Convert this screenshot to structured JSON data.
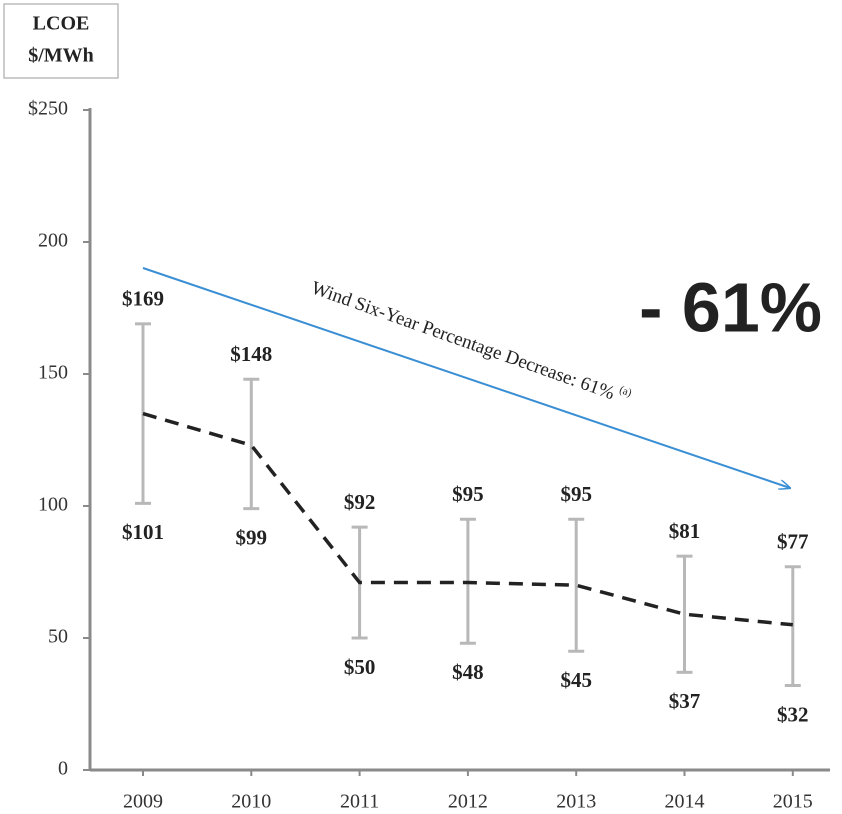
{
  "chart_data": {
    "type": "range-line",
    "ylabel": [
      "LCOE",
      "$/MWh"
    ],
    "annotation": "Wind Six-Year Percentage Decrease: 61%",
    "annotation_note": "(a)",
    "callout": "- 61%",
    "categories": [
      "2009",
      "2010",
      "2011",
      "2012",
      "2013",
      "2014",
      "2015"
    ],
    "high": [
      169,
      148,
      92,
      95,
      95,
      81,
      77
    ],
    "high_value_labels": [
      "$169",
      "$148",
      "$92",
      "$95",
      "$95",
      "$81",
      "$77"
    ],
    "low": [
      101,
      99,
      50,
      48,
      45,
      37,
      32
    ],
    "low_value_labels": [
      "$101",
      "$99",
      "$50",
      "$48",
      "$45",
      "$37",
      "$32"
    ],
    "values": [
      135,
      123,
      71,
      71,
      70,
      59,
      55
    ],
    "range_color": "#b8b8b8",
    "line_color": "#222222",
    "arrow_color": "#3a8fd4",
    "callout_color": "#70ad47",
    "ylim": [
      0,
      250
    ],
    "yticks": [
      0,
      50,
      100,
      150,
      200,
      {
        "value": 250,
        "label": "$250"
      }
    ]
  }
}
